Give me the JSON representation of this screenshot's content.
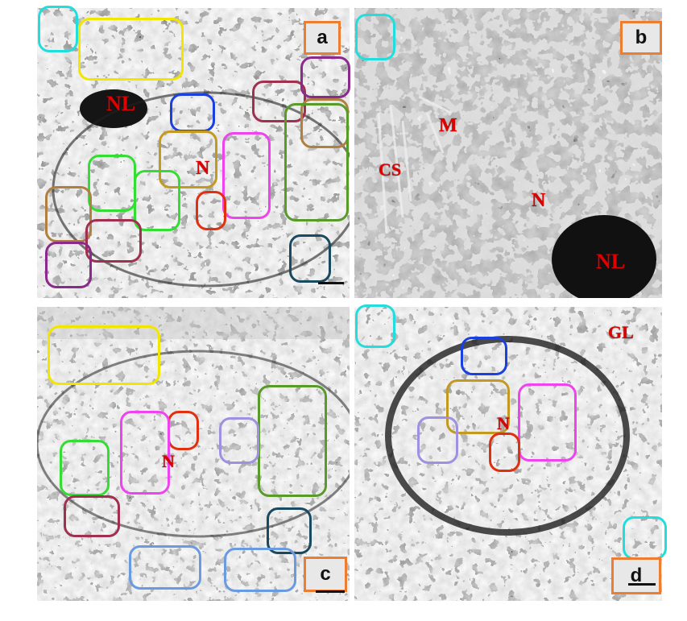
{
  "colors": {
    "cyan": "#22dddd",
    "yellow": "#f2e600",
    "blue": "#1a40e0",
    "tan": "#c29a22",
    "magenta": "#ee44ee",
    "red": "#e03010",
    "green": "#33dd33",
    "olive": "#5a9a2a",
    "maroon": "#a03050",
    "purple": "#8a2a8a",
    "brown": "#b08040",
    "teal": "#1a4a60",
    "lavender": "#a090e0",
    "lightblue": "#6a9ae0",
    "orange": "#ED7D31",
    "label": "#e00000"
  },
  "panels": {
    "a": {
      "letter": "a",
      "labels": {
        "nl": "NL",
        "n": "N"
      }
    },
    "b": {
      "letter": "b",
      "labels": {
        "m": "M",
        "cs": "CS",
        "n": "N",
        "nl": "NL"
      }
    },
    "c": {
      "letter": "c",
      "labels": {
        "n": "N"
      }
    },
    "d": {
      "letter": "d",
      "labels": {
        "gl": "GL",
        "n": "N"
      }
    }
  }
}
